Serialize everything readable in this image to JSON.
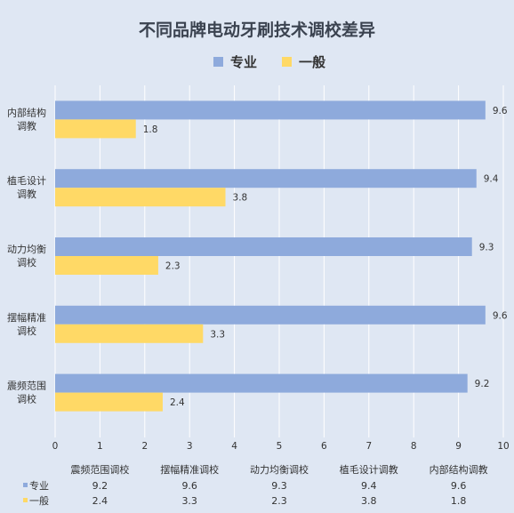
{
  "chart_data": {
    "type": "bar",
    "orientation": "horizontal",
    "title": "不同品牌电动牙刷技术调校差异",
    "categories": [
      "内部结构调教",
      "植毛设计调教",
      "动力均衡调校",
      "摆幅精准调校",
      "震频范围调校"
    ],
    "category_display": [
      [
        "内部结构",
        "调教"
      ],
      [
        "植毛设计",
        "调教"
      ],
      [
        "动力均衡",
        "调校"
      ],
      [
        "摆幅精准",
        "调校"
      ],
      [
        "震频范围",
        "调校"
      ]
    ],
    "table_columns": [
      "震频范围调校",
      "摆幅精准调校",
      "动力均衡调校",
      "植毛设计调教",
      "内部结构调教"
    ],
    "series": [
      {
        "name": "专业",
        "color": "#8eaadc",
        "values": [
          9.6,
          9.4,
          9.3,
          9.6,
          9.2
        ]
      },
      {
        "name": "一般",
        "color": "#ffd966",
        "values": [
          1.8,
          3.8,
          2.3,
          3.3,
          2.4
        ]
      }
    ],
    "xlim": [
      0,
      10
    ],
    "x_ticks": [
      0,
      1,
      2,
      3,
      4,
      5,
      6,
      7,
      8,
      9,
      10
    ],
    "grid": true,
    "legend": "top",
    "data_table": true,
    "colors": {
      "background": "#dfe7f3",
      "grid": "#ffffff",
      "text": "#333333"
    }
  }
}
